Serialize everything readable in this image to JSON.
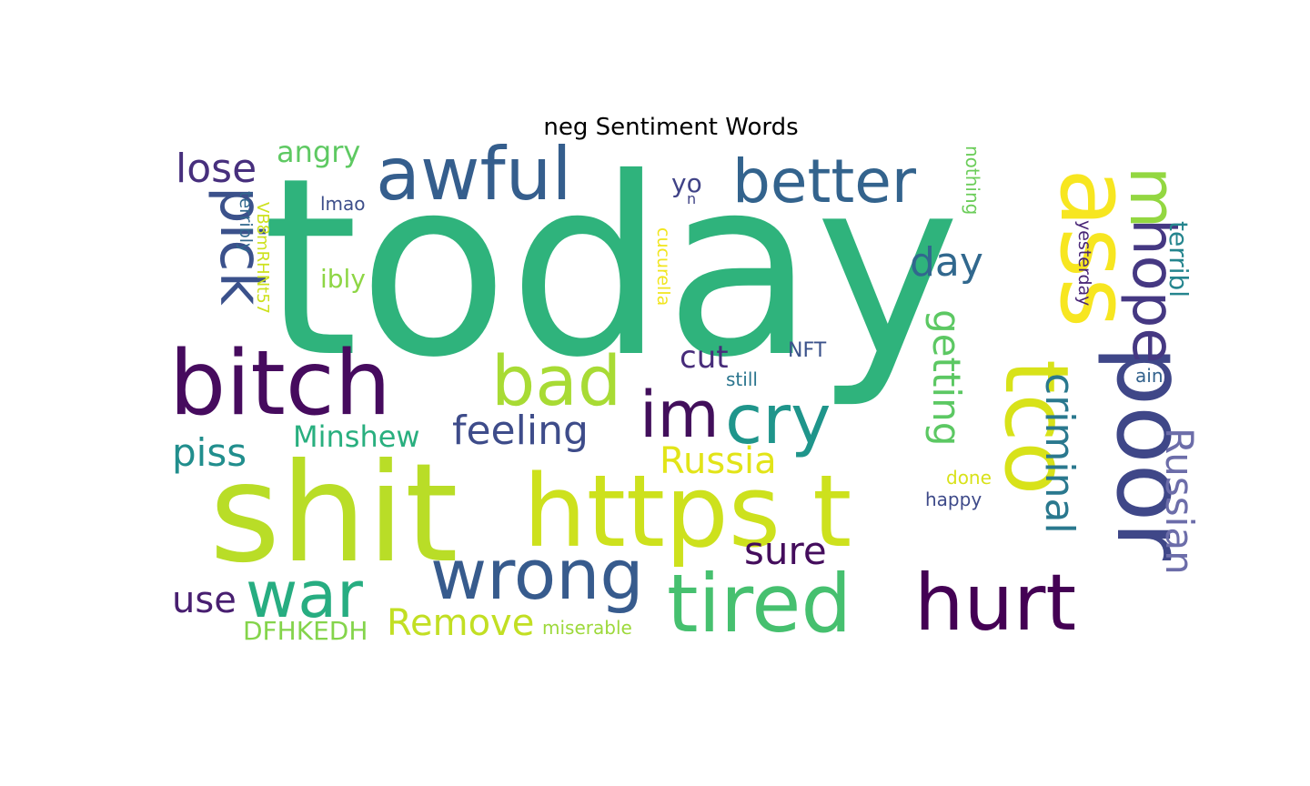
{
  "title": "neg Sentiment Words",
  "words": [
    {
      "text": "today",
      "color": "#2fb37c"
    },
    {
      "text": "shit",
      "color": "#b9dd27"
    },
    {
      "text": "https t",
      "color": "#cde11d"
    },
    {
      "text": "bitch",
      "color": "#460b5e"
    },
    {
      "text": "awful",
      "color": "#355e8d"
    },
    {
      "text": "better",
      "color": "#33638d"
    },
    {
      "text": "ass",
      "color": "#f7e620"
    },
    {
      "text": "m",
      "color": "#93d741"
    },
    {
      "text": "poor",
      "color": "#3f4788"
    },
    {
      "text": "tco",
      "color": "#d8e219"
    },
    {
      "text": "hurt",
      "color": "#440154"
    },
    {
      "text": "tired",
      "color": "#46c06f"
    },
    {
      "text": "wrong",
      "color": "#375b8d"
    },
    {
      "text": "war",
      "color": "#27ad81"
    },
    {
      "text": "cry",
      "color": "#1f958b"
    },
    {
      "text": "im",
      "color": "#420f5b"
    },
    {
      "text": "bad",
      "color": "#a8db34"
    },
    {
      "text": "pick",
      "color": "#3b518b"
    },
    {
      "text": "hope",
      "color": "#453882"
    },
    {
      "text": "Russian",
      "color": "#6c6da9"
    },
    {
      "text": "criminal",
      "color": "#2a788e"
    },
    {
      "text": "getting",
      "color": "#5cc863"
    },
    {
      "text": "lose",
      "color": "#472f7d"
    },
    {
      "text": "angry",
      "color": "#5ec962"
    },
    {
      "text": "day",
      "color": "#31688e"
    },
    {
      "text": "feeling",
      "color": "#3e4c8a"
    },
    {
      "text": "Russia",
      "color": "#e2e418"
    },
    {
      "text": "sure",
      "color": "#440d5c"
    },
    {
      "text": "piss",
      "color": "#218e8d"
    },
    {
      "text": "Minshew",
      "color": "#29af7f"
    },
    {
      "text": "use",
      "color": "#481f70"
    },
    {
      "text": "Remove",
      "color": "#c2df23"
    },
    {
      "text": "DFHKEDH",
      "color": "#84d44b"
    },
    {
      "text": "cut",
      "color": "#472c7a"
    },
    {
      "text": "yo",
      "color": "#404387"
    },
    {
      "text": "n",
      "color": "#414487"
    },
    {
      "text": "ibly",
      "color": "#8ed645"
    },
    {
      "text": "terribl",
      "color": "#25858e"
    },
    {
      "text": "yesterday",
      "color": "#482576"
    },
    {
      "text": "nothing",
      "color": "#6ccd5a"
    },
    {
      "text": "ain",
      "color": "#33628d"
    },
    {
      "text": "NFT",
      "color": "#3b528b"
    },
    {
      "text": "still",
      "color": "#2b758e"
    },
    {
      "text": "done",
      "color": "#d8e219"
    },
    {
      "text": "happy",
      "color": "#3e4a89"
    },
    {
      "text": "miserable",
      "color": "#9dd93b"
    },
    {
      "text": "cucurella",
      "color": "#f1e51d"
    },
    {
      "text": "lmao",
      "color": "#3d4e8a"
    },
    {
      "text": "terribly",
      "color": "#31688e"
    },
    {
      "text": "VB8mRHNt57",
      "color": "#cde11d"
    }
  ]
}
